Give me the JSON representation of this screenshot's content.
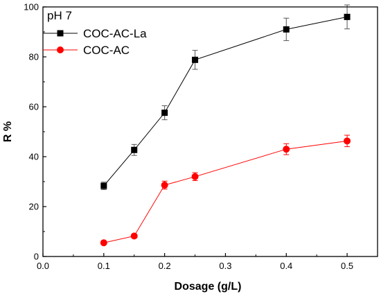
{
  "chart_data": {
    "type": "line",
    "title": "",
    "annotation": "pH 7",
    "xlabel": "Dosage (g/L)",
    "ylabel": "R %",
    "xlim": [
      0.0,
      0.55
    ],
    "ylim": [
      0,
      100
    ],
    "xticks": [
      "0.0",
      "0.1",
      "0.2",
      "0.3",
      "0.4",
      "0.5"
    ],
    "yticks": [
      "0",
      "20",
      "40",
      "60",
      "80",
      "100"
    ],
    "grid": false,
    "legend": "top-left",
    "x": [
      0.1,
      0.15,
      0.2,
      0.25,
      0.4,
      0.5
    ],
    "series": [
      {
        "name": "COC-AC-La",
        "color": "#000000",
        "marker": "square",
        "values": [
          28.3,
          42.7,
          57.6,
          78.8,
          91.0,
          96.0
        ],
        "errors": [
          1.5,
          2.2,
          2.8,
          3.8,
          4.5,
          4.8
        ]
      },
      {
        "name": "COC-AC",
        "color": "#ff0000",
        "marker": "circle",
        "values": [
          5.5,
          8.2,
          28.6,
          32.0,
          43.0,
          46.3
        ],
        "errors": [
          0.6,
          0.8,
          1.6,
          1.6,
          2.2,
          2.3
        ]
      }
    ]
  }
}
